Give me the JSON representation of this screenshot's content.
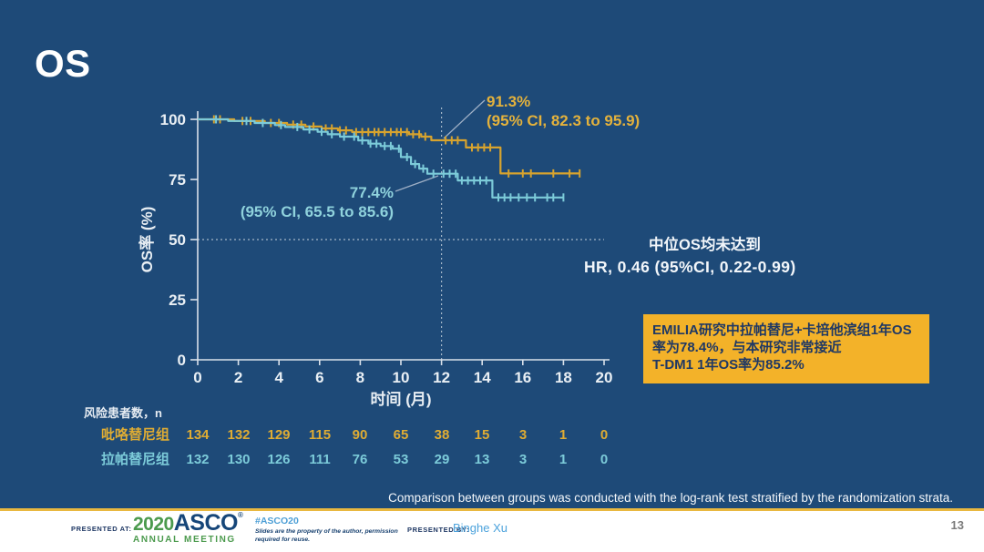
{
  "slide": {
    "title": "OS",
    "page_number": "13",
    "footnote": "Comparison between groups was conducted with the log-rank test stratified by the randomization strata.",
    "stats": {
      "median_line": "中位OS均未达到",
      "hr_line": "HR, 0.46 (95%CI, 0.22-0.99)"
    },
    "annotations": {
      "pyrotinib": {
        "value": "91.3%",
        "ci": "(95% CI, 82.3 to 95.9)"
      },
      "lapatinib": {
        "value": "77.4%",
        "ci": "(95% CI, 65.5 to 85.6)"
      }
    },
    "callout": {
      "line1": "EMILIA研究中拉帕替尼+卡培他滨组1年OS率为78.4%，与本研究非常接近",
      "line2": "T-DM1 1年OS率为85.2%"
    }
  },
  "chart_data": {
    "type": "line",
    "subtype": "kaplan-meier-step",
    "title": "",
    "xlabel": "时间 (月)",
    "ylabel": "OS率 (%)",
    "xlim": [
      0,
      20
    ],
    "ylim": [
      0,
      100
    ],
    "xticks": [
      0,
      2,
      4,
      6,
      8,
      10,
      12,
      14,
      16,
      18,
      20
    ],
    "yticks": [
      0,
      25,
      50,
      75,
      100
    ],
    "grid": false,
    "legend_position": "none",
    "reference_lines": {
      "vertical_x": 12,
      "horizontal_y": 50
    },
    "series": [
      {
        "name": "吡咯替尼组",
        "color": "#D7A32E",
        "landmark": {
          "time_months": 12,
          "os_rate_percent": 91.3,
          "ci95": "82.3 to 95.9"
        },
        "steps": [
          [
            0,
            100
          ],
          [
            1.8,
            100
          ],
          [
            1.8,
            99.3
          ],
          [
            3.3,
            99.3
          ],
          [
            3.3,
            98.5
          ],
          [
            4.4,
            98.5
          ],
          [
            4.4,
            97.8
          ],
          [
            5.3,
            97.8
          ],
          [
            5.3,
            97
          ],
          [
            6.1,
            97
          ],
          [
            6.1,
            96.2
          ],
          [
            6.9,
            96.2
          ],
          [
            6.9,
            95.4
          ],
          [
            7.6,
            95.4
          ],
          [
            7.6,
            94.7
          ],
          [
            10.4,
            94.7
          ],
          [
            10.4,
            93.8
          ],
          [
            11,
            93.8
          ],
          [
            11,
            92.8
          ],
          [
            11.5,
            92.8
          ],
          [
            11.5,
            91.3
          ],
          [
            13.2,
            91.3
          ],
          [
            13.2,
            88.3
          ],
          [
            14.9,
            88.3
          ],
          [
            14.9,
            77.5
          ],
          [
            18.8,
            77.5
          ]
        ],
        "censor_times": [
          0.8,
          1.1,
          2.2,
          2.6,
          3.6,
          4,
          4.7,
          5.1,
          5.7,
          6.3,
          6.6,
          7,
          7.3,
          7.8,
          8.1,
          8.4,
          8.7,
          8.9,
          9.2,
          9.5,
          9.8,
          10,
          10.3,
          10.6,
          10.9,
          11.2,
          12.2,
          12.5,
          12.8,
          13.5,
          13.8,
          14.1,
          14.4,
          15.3,
          16,
          16.4,
          17.5,
          18.3,
          18.8
        ]
      },
      {
        "name": "拉帕替尼组",
        "color": "#7CCBD9",
        "landmark": {
          "time_months": 12,
          "os_rate_percent": 77.4,
          "ci95": "65.5 to 85.6"
        },
        "steps": [
          [
            0,
            100
          ],
          [
            1.5,
            100
          ],
          [
            1.5,
            99.3
          ],
          [
            2.8,
            99.3
          ],
          [
            2.8,
            98.5
          ],
          [
            3.8,
            98.5
          ],
          [
            3.8,
            97.6
          ],
          [
            4.3,
            97.6
          ],
          [
            4.3,
            96.8
          ],
          [
            5.2,
            96.8
          ],
          [
            5.2,
            95.8
          ],
          [
            5.9,
            95.8
          ],
          [
            5.9,
            94.8
          ],
          [
            6.4,
            94.8
          ],
          [
            6.4,
            93.8
          ],
          [
            7,
            93.8
          ],
          [
            7,
            92.8
          ],
          [
            7.9,
            92.8
          ],
          [
            7.9,
            91.2
          ],
          [
            8.4,
            91.2
          ],
          [
            8.4,
            89.9
          ],
          [
            9,
            89.9
          ],
          [
            9,
            88.9
          ],
          [
            9.6,
            88.9
          ],
          [
            9.6,
            87.8
          ],
          [
            10,
            87.8
          ],
          [
            10,
            84.3
          ],
          [
            10.5,
            84.3
          ],
          [
            10.5,
            81.4
          ],
          [
            10.9,
            81.4
          ],
          [
            10.9,
            79.5
          ],
          [
            11.3,
            79.5
          ],
          [
            11.3,
            77.4
          ],
          [
            12.8,
            77.4
          ],
          [
            12.8,
            74.6
          ],
          [
            14.5,
            74.6
          ],
          [
            14.5,
            67.5
          ],
          [
            18,
            67.5
          ]
        ],
        "censor_times": [
          0.9,
          2.4,
          3.2,
          4.1,
          4.9,
          5.5,
          6.1,
          6.6,
          7.2,
          7.7,
          8.1,
          8.5,
          8.8,
          9.2,
          9.5,
          9.9,
          10.3,
          10.7,
          11.1,
          11.6,
          12.1,
          12.4,
          12.7,
          13,
          13.3,
          13.6,
          13.9,
          14.2,
          14.8,
          15.1,
          15.4,
          15.8,
          16.2,
          16.6,
          17.2,
          17.5,
          18
        ]
      }
    ],
    "risk_table": {
      "label": "风险患者数，n",
      "times": [
        0,
        2,
        4,
        6,
        8,
        10,
        12,
        14,
        16,
        18,
        20
      ],
      "rows": [
        {
          "name": "吡咯替尼组",
          "color": "#DFAC33",
          "values": [
            134,
            132,
            129,
            115,
            90,
            65,
            38,
            15,
            3,
            1,
            0
          ]
        },
        {
          "name": "拉帕替尼组",
          "color": "#7CCBD9",
          "values": [
            132,
            130,
            126,
            111,
            76,
            53,
            29,
            13,
            3,
            1,
            0
          ]
        }
      ]
    }
  },
  "footer": {
    "presented_at_label": "PRESENTED AT:",
    "logo": {
      "year": "2020",
      "org": "ASCO",
      "reg": "®",
      "subtitle": "ANNUAL MEETING"
    },
    "hashtag": "#ASCO20",
    "reuse_note": "Slides are the property of the author, permission required for reuse.",
    "presented_by_label": "PRESENTED BY:",
    "presenter": "Binghe Xu"
  },
  "colors": {
    "background": "#1E4A78",
    "pyrotinib_gold": "#D7A32E",
    "lapatinib_cyan": "#7CCBD9",
    "callout_bg": "#F3B229",
    "callout_text": "#1F3864",
    "footer_navy": "#1F3864",
    "asco_green": "#4B9A4D",
    "link_blue": "#4DA3DC",
    "white_text": "#F2F6FA"
  }
}
